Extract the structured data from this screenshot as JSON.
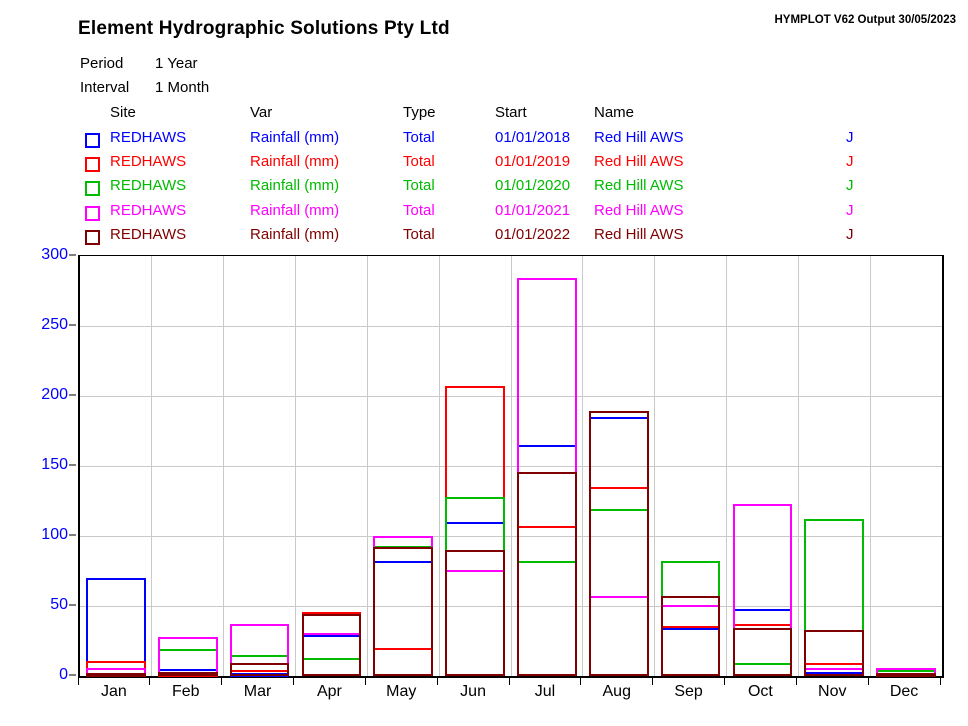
{
  "header": {
    "title": "Element Hydrographic Solutions Pty Ltd",
    "watermark": "HYMPLOT V62  Output 30/05/2023",
    "period_label": "Period",
    "period_value": "1 Year",
    "interval_label": "Interval",
    "interval_value": "1 Month"
  },
  "legend": {
    "columns": {
      "site": "Site",
      "var": "Var",
      "type": "Type",
      "start": "Start",
      "name": "Name"
    },
    "rows": [
      {
        "site": "REDHAWS",
        "var": "Rainfall (mm)",
        "type": "Total",
        "start": "01/01/2018",
        "name": "Red Hill AWS",
        "flag": "J",
        "color": "#0000ff"
      },
      {
        "site": "REDHAWS",
        "var": "Rainfall (mm)",
        "type": "Total",
        "start": "01/01/2019",
        "name": "Red Hill AWS",
        "flag": "J",
        "color": "#ff0000"
      },
      {
        "site": "REDHAWS",
        "var": "Rainfall (mm)",
        "type": "Total",
        "start": "01/01/2020",
        "name": "Red Hill AWS",
        "flag": "J",
        "color": "#00bb00"
      },
      {
        "site": "REDHAWS",
        "var": "Rainfall (mm)",
        "type": "Total",
        "start": "01/01/2021",
        "name": "Red Hill AWS",
        "flag": "J",
        "color": "#ff00ff"
      },
      {
        "site": "REDHAWS",
        "var": "Rainfall (mm)",
        "type": "Total",
        "start": "01/01/2022",
        "name": "Red Hill AWS",
        "flag": "J",
        "color": "#7f0000"
      }
    ]
  },
  "chart_data": {
    "type": "bar",
    "overlay": true,
    "title": "Element Hydrographic Solutions Pty Ltd",
    "xlabel": "",
    "ylabel": "Rainfall (mm)",
    "ylim": [
      0,
      300
    ],
    "yticks": [
      0,
      50,
      100,
      150,
      200,
      250,
      300
    ],
    "grid": true,
    "axis_tick_color": "#0000ff",
    "grid_color": "#c9c9c9",
    "categories": [
      "Jan",
      "Feb",
      "Mar",
      "Apr",
      "May",
      "Jun",
      "Jul",
      "Aug",
      "Sep",
      "Oct",
      "Nov",
      "Dec"
    ],
    "series": [
      {
        "name": "REDHAWS Rainfall 2018",
        "color": "#0000ff",
        "values": [
          70,
          5,
          1,
          29,
          82,
          110,
          165,
          185,
          34,
          48,
          3,
          2
        ]
      },
      {
        "name": "REDHAWS Rainfall 2019",
        "color": "#ff0000",
        "values": [
          11,
          2,
          4,
          46,
          20,
          207,
          107,
          135,
          36,
          37,
          9,
          1
        ]
      },
      {
        "name": "REDHAWS Rainfall 2020",
        "color": "#00bb00",
        "values": [
          2,
          19,
          15,
          13,
          93,
          128,
          82,
          119,
          82,
          9,
          112,
          4
        ]
      },
      {
        "name": "REDHAWS Rainfall 2021",
        "color": "#ff00ff",
        "values": [
          6,
          28,
          37,
          31,
          100,
          76,
          284,
          57,
          51,
          123,
          6,
          6
        ]
      },
      {
        "name": "REDHAWS Rainfall 2022",
        "color": "#7f0000",
        "values": [
          1,
          3,
          9,
          44,
          92,
          90,
          146,
          189,
          57,
          34,
          33,
          2
        ]
      }
    ]
  }
}
